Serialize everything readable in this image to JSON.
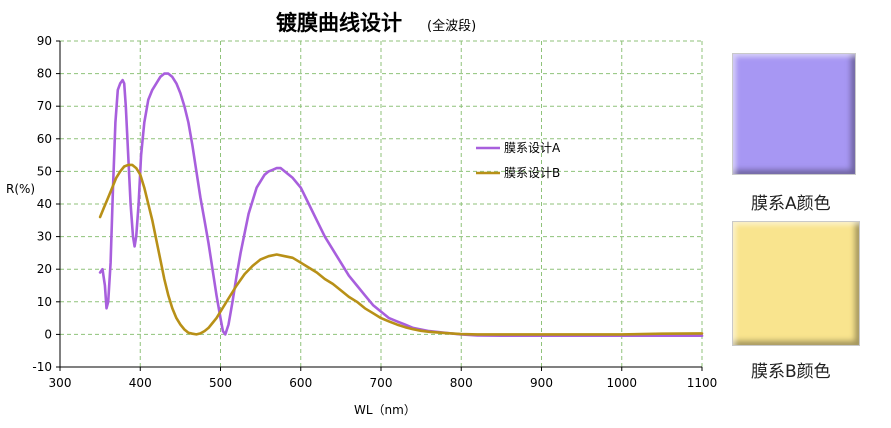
{
  "chart_data": {
    "type": "line",
    "title": "镀膜曲线设计",
    "subtitle": "(全波段)",
    "xlabel": "WL（nm）",
    "ylabel": "R(%)",
    "xlim": [
      300,
      1100
    ],
    "ylim": [
      -10,
      90
    ],
    "x_ticks": [
      300,
      400,
      500,
      600,
      700,
      800,
      900,
      1000,
      1100
    ],
    "y_ticks": [
      -10,
      0,
      10,
      20,
      30,
      40,
      50,
      60,
      70,
      80,
      90
    ],
    "grid": true,
    "legend_position": "middle-right",
    "series": [
      {
        "name": "膜系设计A",
        "color": "#a85fdd",
        "points": [
          [
            350,
            19
          ],
          [
            353,
            20
          ],
          [
            356,
            15
          ],
          [
            358,
            8
          ],
          [
            360,
            10
          ],
          [
            363,
            22
          ],
          [
            366,
            45
          ],
          [
            369,
            65
          ],
          [
            372,
            75
          ],
          [
            375,
            77
          ],
          [
            378,
            78
          ],
          [
            380,
            77
          ],
          [
            382,
            70
          ],
          [
            385,
            55
          ],
          [
            388,
            40
          ],
          [
            391,
            30
          ],
          [
            393,
            27
          ],
          [
            395,
            30
          ],
          [
            398,
            40
          ],
          [
            401,
            55
          ],
          [
            405,
            65
          ],
          [
            410,
            72
          ],
          [
            415,
            75
          ],
          [
            420,
            77
          ],
          [
            425,
            79
          ],
          [
            430,
            80
          ],
          [
            435,
            80
          ],
          [
            440,
            79
          ],
          [
            445,
            77
          ],
          [
            450,
            74
          ],
          [
            455,
            70
          ],
          [
            460,
            65
          ],
          [
            465,
            58
          ],
          [
            470,
            50
          ],
          [
            475,
            42
          ],
          [
            480,
            35
          ],
          [
            485,
            28
          ],
          [
            490,
            20
          ],
          [
            495,
            12
          ],
          [
            500,
            5
          ],
          [
            503,
            1
          ],
          [
            506,
            0
          ],
          [
            510,
            3
          ],
          [
            515,
            10
          ],
          [
            520,
            18
          ],
          [
            525,
            25
          ],
          [
            530,
            31
          ],
          [
            535,
            37
          ],
          [
            540,
            41
          ],
          [
            545,
            45
          ],
          [
            550,
            47
          ],
          [
            555,
            49
          ],
          [
            560,
            50
          ],
          [
            565,
            50.5
          ],
          [
            570,
            51
          ],
          [
            575,
            51
          ],
          [
            580,
            50
          ],
          [
            590,
            48
          ],
          [
            600,
            45
          ],
          [
            610,
            40
          ],
          [
            620,
            35
          ],
          [
            630,
            30
          ],
          [
            640,
            26
          ],
          [
            650,
            22
          ],
          [
            660,
            18
          ],
          [
            670,
            15
          ],
          [
            680,
            12
          ],
          [
            690,
            9
          ],
          [
            700,
            7
          ],
          [
            710,
            5
          ],
          [
            720,
            4
          ],
          [
            730,
            3
          ],
          [
            740,
            2
          ],
          [
            760,
            1
          ],
          [
            780,
            0.5
          ],
          [
            800,
            0
          ],
          [
            820,
            -0.3
          ],
          [
            850,
            -0.4
          ],
          [
            900,
            -0.4
          ],
          [
            950,
            -0.4
          ],
          [
            1000,
            -0.4
          ],
          [
            1050,
            -0.4
          ],
          [
            1100,
            -0.4
          ]
        ]
      },
      {
        "name": "膜系设计B",
        "color": "#b89017",
        "points": [
          [
            350,
            36
          ],
          [
            355,
            39
          ],
          [
            360,
            42
          ],
          [
            365,
            45
          ],
          [
            370,
            48
          ],
          [
            375,
            50
          ],
          [
            380,
            51.5
          ],
          [
            385,
            52
          ],
          [
            390,
            52
          ],
          [
            395,
            51
          ],
          [
            400,
            49
          ],
          [
            405,
            45
          ],
          [
            410,
            40
          ],
          [
            415,
            35
          ],
          [
            420,
            29
          ],
          [
            425,
            23
          ],
          [
            430,
            17
          ],
          [
            435,
            12
          ],
          [
            440,
            8
          ],
          [
            445,
            5
          ],
          [
            450,
            3
          ],
          [
            455,
            1.5
          ],
          [
            460,
            0.5
          ],
          [
            465,
            0.2
          ],
          [
            470,
            0
          ],
          [
            475,
            0.3
          ],
          [
            480,
            1
          ],
          [
            485,
            2
          ],
          [
            490,
            3.5
          ],
          [
            495,
            5
          ],
          [
            500,
            7
          ],
          [
            510,
            11
          ],
          [
            520,
            15
          ],
          [
            530,
            18.5
          ],
          [
            540,
            21
          ],
          [
            550,
            23
          ],
          [
            560,
            24
          ],
          [
            570,
            24.5
          ],
          [
            580,
            24
          ],
          [
            590,
            23.5
          ],
          [
            600,
            22
          ],
          [
            610,
            20.5
          ],
          [
            620,
            19
          ],
          [
            630,
            17
          ],
          [
            640,
            15.5
          ],
          [
            650,
            13.5
          ],
          [
            660,
            11.5
          ],
          [
            670,
            10
          ],
          [
            680,
            8
          ],
          [
            690,
            6.5
          ],
          [
            700,
            5
          ],
          [
            710,
            4
          ],
          [
            720,
            3
          ],
          [
            730,
            2.2
          ],
          [
            740,
            1.6
          ],
          [
            750,
            1.1
          ],
          [
            760,
            0.8
          ],
          [
            780,
            0.4
          ],
          [
            800,
            0.1
          ],
          [
            820,
            0
          ],
          [
            850,
            0
          ],
          [
            900,
            0
          ],
          [
            950,
            0
          ],
          [
            1000,
            0
          ],
          [
            1050,
            0.2
          ],
          [
            1100,
            0.3
          ]
        ]
      }
    ]
  },
  "swatches": [
    {
      "label": "膜系A颜色",
      "color": "#a797f3"
    },
    {
      "label": "膜系B颜色",
      "color": "#f9e48e"
    }
  ]
}
